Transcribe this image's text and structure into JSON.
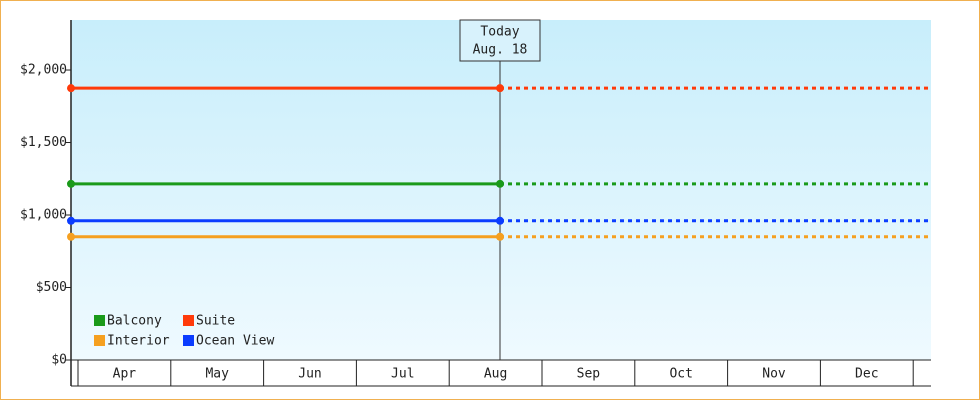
{
  "chart_data": {
    "type": "line",
    "categories": [
      "Apr",
      "May",
      "Jun",
      "Jul",
      "Aug",
      "Sep",
      "Oct",
      "Nov",
      "Dec"
    ],
    "series": [
      {
        "name": "Balcony",
        "color": "#1a9a1a",
        "value": 1215
      },
      {
        "name": "Suite",
        "color": "#ff3a0a",
        "value": 1875
      },
      {
        "name": "Interior",
        "color": "#f5a020",
        "value": 850
      },
      {
        "name": "Ocean View",
        "color": "#0a3cff",
        "value": 960
      }
    ],
    "annotation": {
      "line1": "Today",
      "line2": "Aug. 18"
    },
    "ylim": [
      0,
      2345
    ],
    "yticks": [
      {
        "value": 0,
        "label": "$0"
      },
      {
        "value": 500,
        "label": "$500"
      },
      {
        "value": 1000,
        "label": "$1,000"
      },
      {
        "value": 1500,
        "label": "$1,500"
      },
      {
        "value": 2000,
        "label": "$2,000"
      }
    ],
    "legend": "lower-left"
  }
}
